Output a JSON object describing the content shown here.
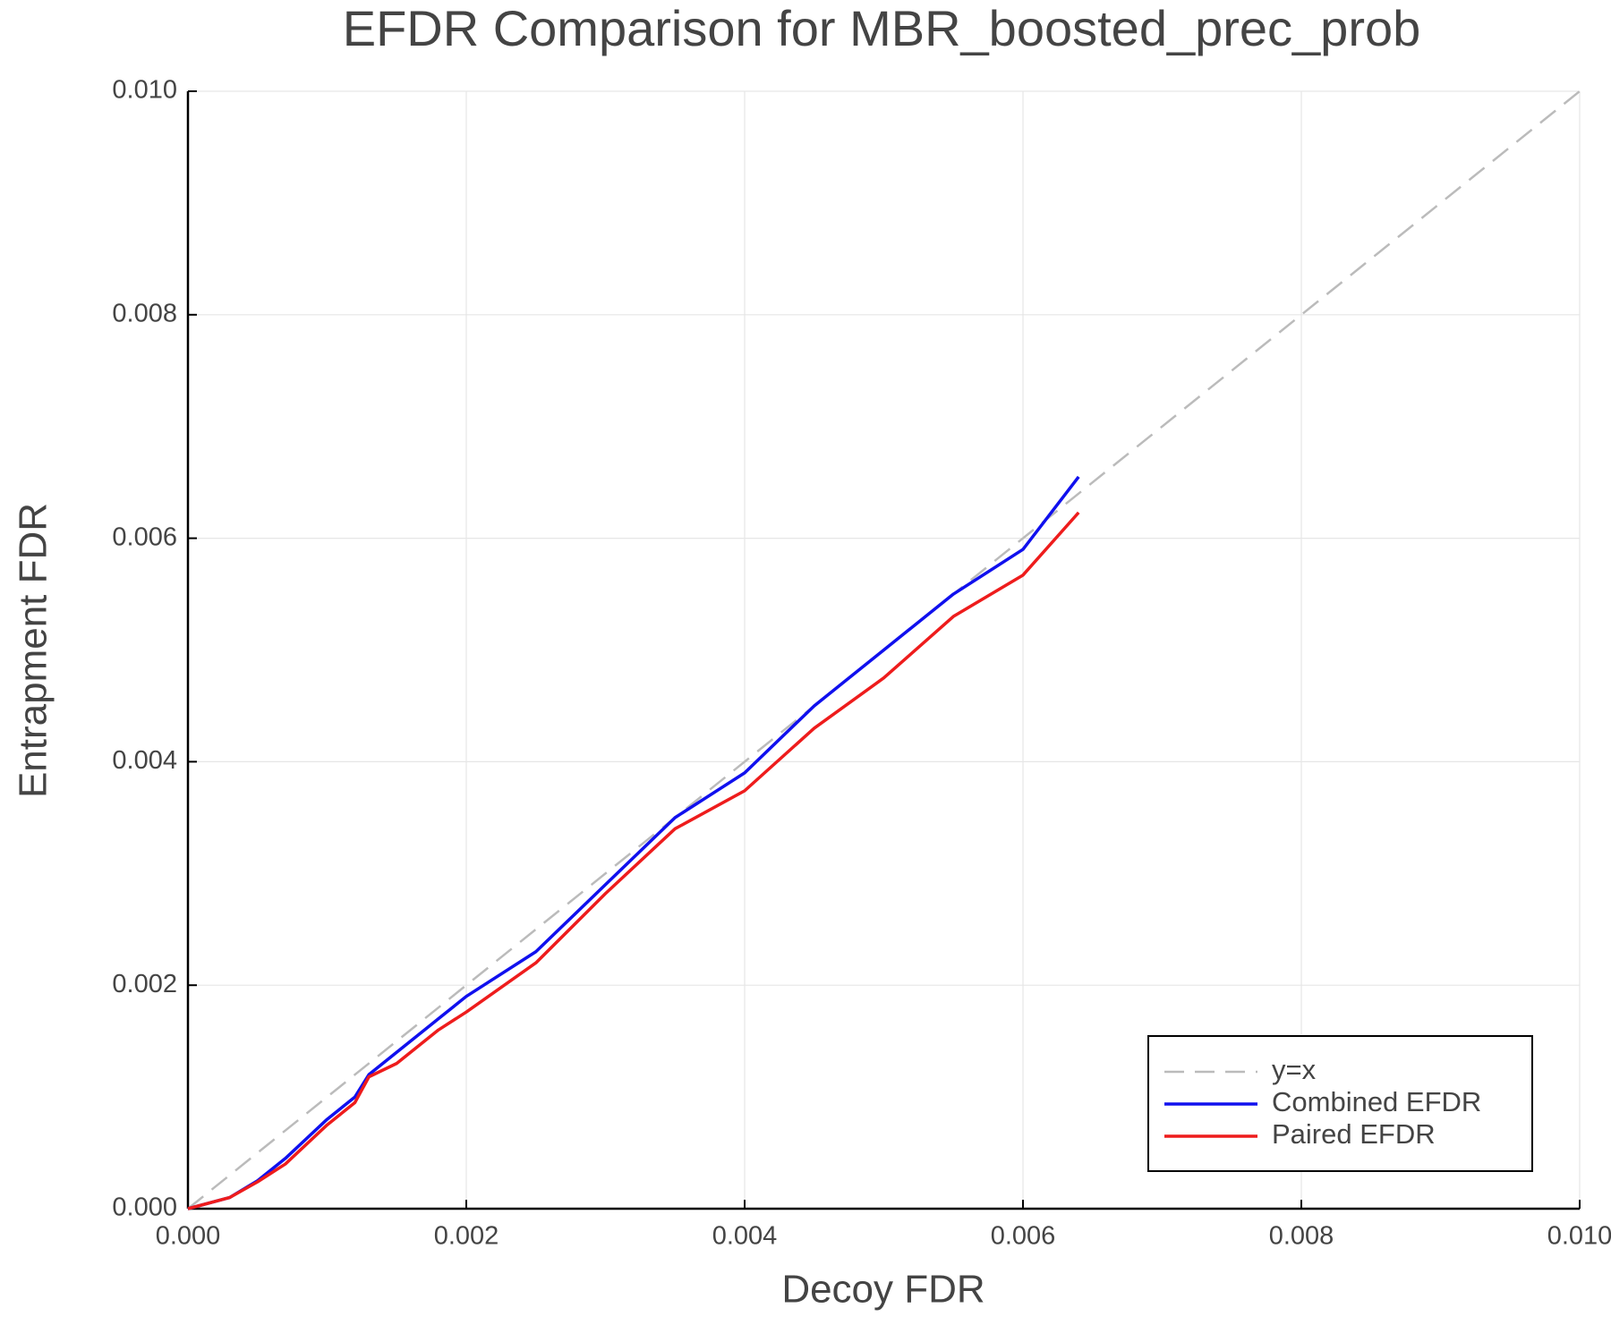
{
  "chart_data": {
    "type": "line",
    "title": "EFDR Comparison for MBR_boosted_prec_prob",
    "x_label": "Decoy FDR",
    "y_label": "Entrapment FDR",
    "xlim": [
      0,
      0.01
    ],
    "ylim": [
      0,
      0.01
    ],
    "xticks": [
      {
        "value": 0,
        "label": "0.000"
      },
      {
        "value": 0.002,
        "label": "0.002"
      },
      {
        "value": 0.004,
        "label": "0.004"
      },
      {
        "value": 0.006,
        "label": "0.006"
      },
      {
        "value": 0.008,
        "label": "0.008"
      },
      {
        "value": 0.01,
        "label": "0.010"
      }
    ],
    "yticks": [
      {
        "value": 0,
        "label": "0.000"
      },
      {
        "value": 0.002,
        "label": "0.002"
      },
      {
        "value": 0.004,
        "label": "0.004"
      },
      {
        "value": 0.006,
        "label": "0.006"
      },
      {
        "value": 0.008,
        "label": "0.008"
      },
      {
        "value": 0.01,
        "label": "0.010"
      }
    ],
    "grid": true,
    "legend": "bottom-right",
    "series": [
      {
        "name": "y=x",
        "color": "#bbbbbb",
        "dashed": true,
        "x": [
          0,
          0.01
        ],
        "values": [
          0,
          0.01
        ]
      },
      {
        "name": "Combined EFDR",
        "color": "#1010ee",
        "x": [
          0,
          0.0003,
          0.0005,
          0.0007,
          0.001,
          0.0012,
          0.0013,
          0.0015,
          0.0018,
          0.002,
          0.0025,
          0.003,
          0.0035,
          0.004,
          0.0045,
          0.005,
          0.0055,
          0.006,
          0.0064
        ],
        "values": [
          0,
          0.0001,
          0.00025,
          0.00045,
          0.0008,
          0.001,
          0.0012,
          0.0014,
          0.0017,
          0.0019,
          0.0023,
          0.0029,
          0.0035,
          0.0039,
          0.0045,
          0.005,
          0.0055,
          0.0059,
          0.00655
        ]
      },
      {
        "name": "Paired EFDR",
        "color": "#ee1c1c",
        "x": [
          0,
          0.0003,
          0.0005,
          0.0007,
          0.001,
          0.0012,
          0.0013,
          0.0015,
          0.0018,
          0.002,
          0.0025,
          0.003,
          0.0035,
          0.004,
          0.0045,
          0.005,
          0.0055,
          0.006,
          0.0064
        ],
        "values": [
          0,
          0.0001,
          0.00024,
          0.0004,
          0.00075,
          0.00095,
          0.00118,
          0.0013,
          0.0016,
          0.00176,
          0.0022,
          0.00282,
          0.0034,
          0.00374,
          0.0043,
          0.00475,
          0.0053,
          0.00567,
          0.00623
        ]
      }
    ]
  }
}
